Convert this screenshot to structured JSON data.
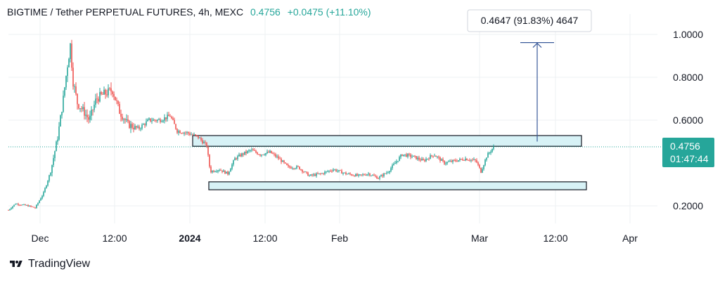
{
  "header": {
    "symbol": "BIGTIME / Tether PERPETUAL FUTURES, 4h, MEXC",
    "last_price": "0.4756",
    "change": "+0.0475 (+11.10%)"
  },
  "brand": {
    "name": "TradingView",
    "icon": "tradingview-logo-icon"
  },
  "price_badge": {
    "price": "0.4756",
    "countdown": "01:47:44",
    "color": "#26a69a"
  },
  "measure_label": "0.4647 (91.83%) 4647",
  "colors": {
    "up": "#26a69a",
    "down": "#ef5350",
    "zone_fill": "#d7f2f6",
    "zone_stroke": "#131722",
    "arrow": "#3a5a9a",
    "price_line": "#26a69a",
    "grid": "#eef0f3"
  },
  "chart_data": {
    "type": "candlestick",
    "title": "BIGTIME / Tether PERPETUAL FUTURES, 4h, MEXC",
    "y_axis": {
      "side": "right",
      "ticks": [
        "1.0000",
        "0.8000",
        "0.6000",
        "0.2000"
      ],
      "range": [
        0.09,
        1.14
      ]
    },
    "x_axis": {
      "ticks": [
        "Dec",
        "12:00",
        "2024",
        "12:00",
        "Feb",
        "Mar",
        "12:00",
        "Apr"
      ],
      "bold": [
        "2024"
      ]
    },
    "last_price": 0.4756,
    "grid": true,
    "price_path": [
      {
        "t": 0,
        "p": 0.18
      },
      {
        "t": 10,
        "p": 0.21
      },
      {
        "t": 28,
        "p": 0.2
      },
      {
        "t": 38,
        "p": 0.19
      },
      {
        "t": 50,
        "p": 0.26
      },
      {
        "t": 60,
        "p": 0.36
      },
      {
        "t": 70,
        "p": 0.52
      },
      {
        "t": 78,
        "p": 0.7
      },
      {
        "t": 84,
        "p": 0.86
      },
      {
        "t": 88,
        "p": 0.95
      },
      {
        "t": 92,
        "p": 0.78
      },
      {
        "t": 98,
        "p": 0.68
      },
      {
        "t": 105,
        "p": 0.65
      },
      {
        "t": 115,
        "p": 0.6
      },
      {
        "t": 125,
        "p": 0.7
      },
      {
        "t": 135,
        "p": 0.72
      },
      {
        "t": 148,
        "p": 0.74
      },
      {
        "t": 158,
        "p": 0.64
      },
      {
        "t": 170,
        "p": 0.58
      },
      {
        "t": 185,
        "p": 0.56
      },
      {
        "t": 200,
        "p": 0.6
      },
      {
        "t": 215,
        "p": 0.6
      },
      {
        "t": 230,
        "p": 0.62
      },
      {
        "t": 240,
        "p": 0.55
      },
      {
        "t": 255,
        "p": 0.54
      },
      {
        "t": 270,
        "p": 0.52
      },
      {
        "t": 282,
        "p": 0.48
      },
      {
        "t": 287,
        "p": 0.36
      },
      {
        "t": 300,
        "p": 0.37
      },
      {
        "t": 312,
        "p": 0.35
      },
      {
        "t": 322,
        "p": 0.42
      },
      {
        "t": 332,
        "p": 0.44
      },
      {
        "t": 345,
        "p": 0.46
      },
      {
        "t": 358,
        "p": 0.44
      },
      {
        "t": 372,
        "p": 0.45
      },
      {
        "t": 385,
        "p": 0.42
      },
      {
        "t": 398,
        "p": 0.38
      },
      {
        "t": 412,
        "p": 0.38
      },
      {
        "t": 428,
        "p": 0.34
      },
      {
        "t": 445,
        "p": 0.35
      },
      {
        "t": 462,
        "p": 0.37
      },
      {
        "t": 480,
        "p": 0.35
      },
      {
        "t": 498,
        "p": 0.34
      },
      {
        "t": 512,
        "p": 0.35
      },
      {
        "t": 526,
        "p": 0.33
      },
      {
        "t": 540,
        "p": 0.36
      },
      {
        "t": 550,
        "p": 0.4
      },
      {
        "t": 560,
        "p": 0.44
      },
      {
        "t": 575,
        "p": 0.43
      },
      {
        "t": 590,
        "p": 0.41
      },
      {
        "t": 605,
        "p": 0.44
      },
      {
        "t": 620,
        "p": 0.4
      },
      {
        "t": 635,
        "p": 0.41
      },
      {
        "t": 650,
        "p": 0.42
      },
      {
        "t": 665,
        "p": 0.41
      },
      {
        "t": 672,
        "p": 0.36
      },
      {
        "t": 680,
        "p": 0.43
      },
      {
        "t": 690,
        "p": 0.4756
      }
    ],
    "zones": [
      {
        "name": "resistance-zone",
        "t0": 262,
        "t1": 815,
        "top": 0.528,
        "bottom": 0.478
      },
      {
        "name": "support-zone",
        "t0": 285,
        "t1": 822,
        "top": 0.312,
        "bottom": 0.275
      }
    ],
    "measure": {
      "t": 752,
      "from": 0.5,
      "to": 0.962,
      "label": "0.4647 (91.83%) 4647"
    }
  }
}
